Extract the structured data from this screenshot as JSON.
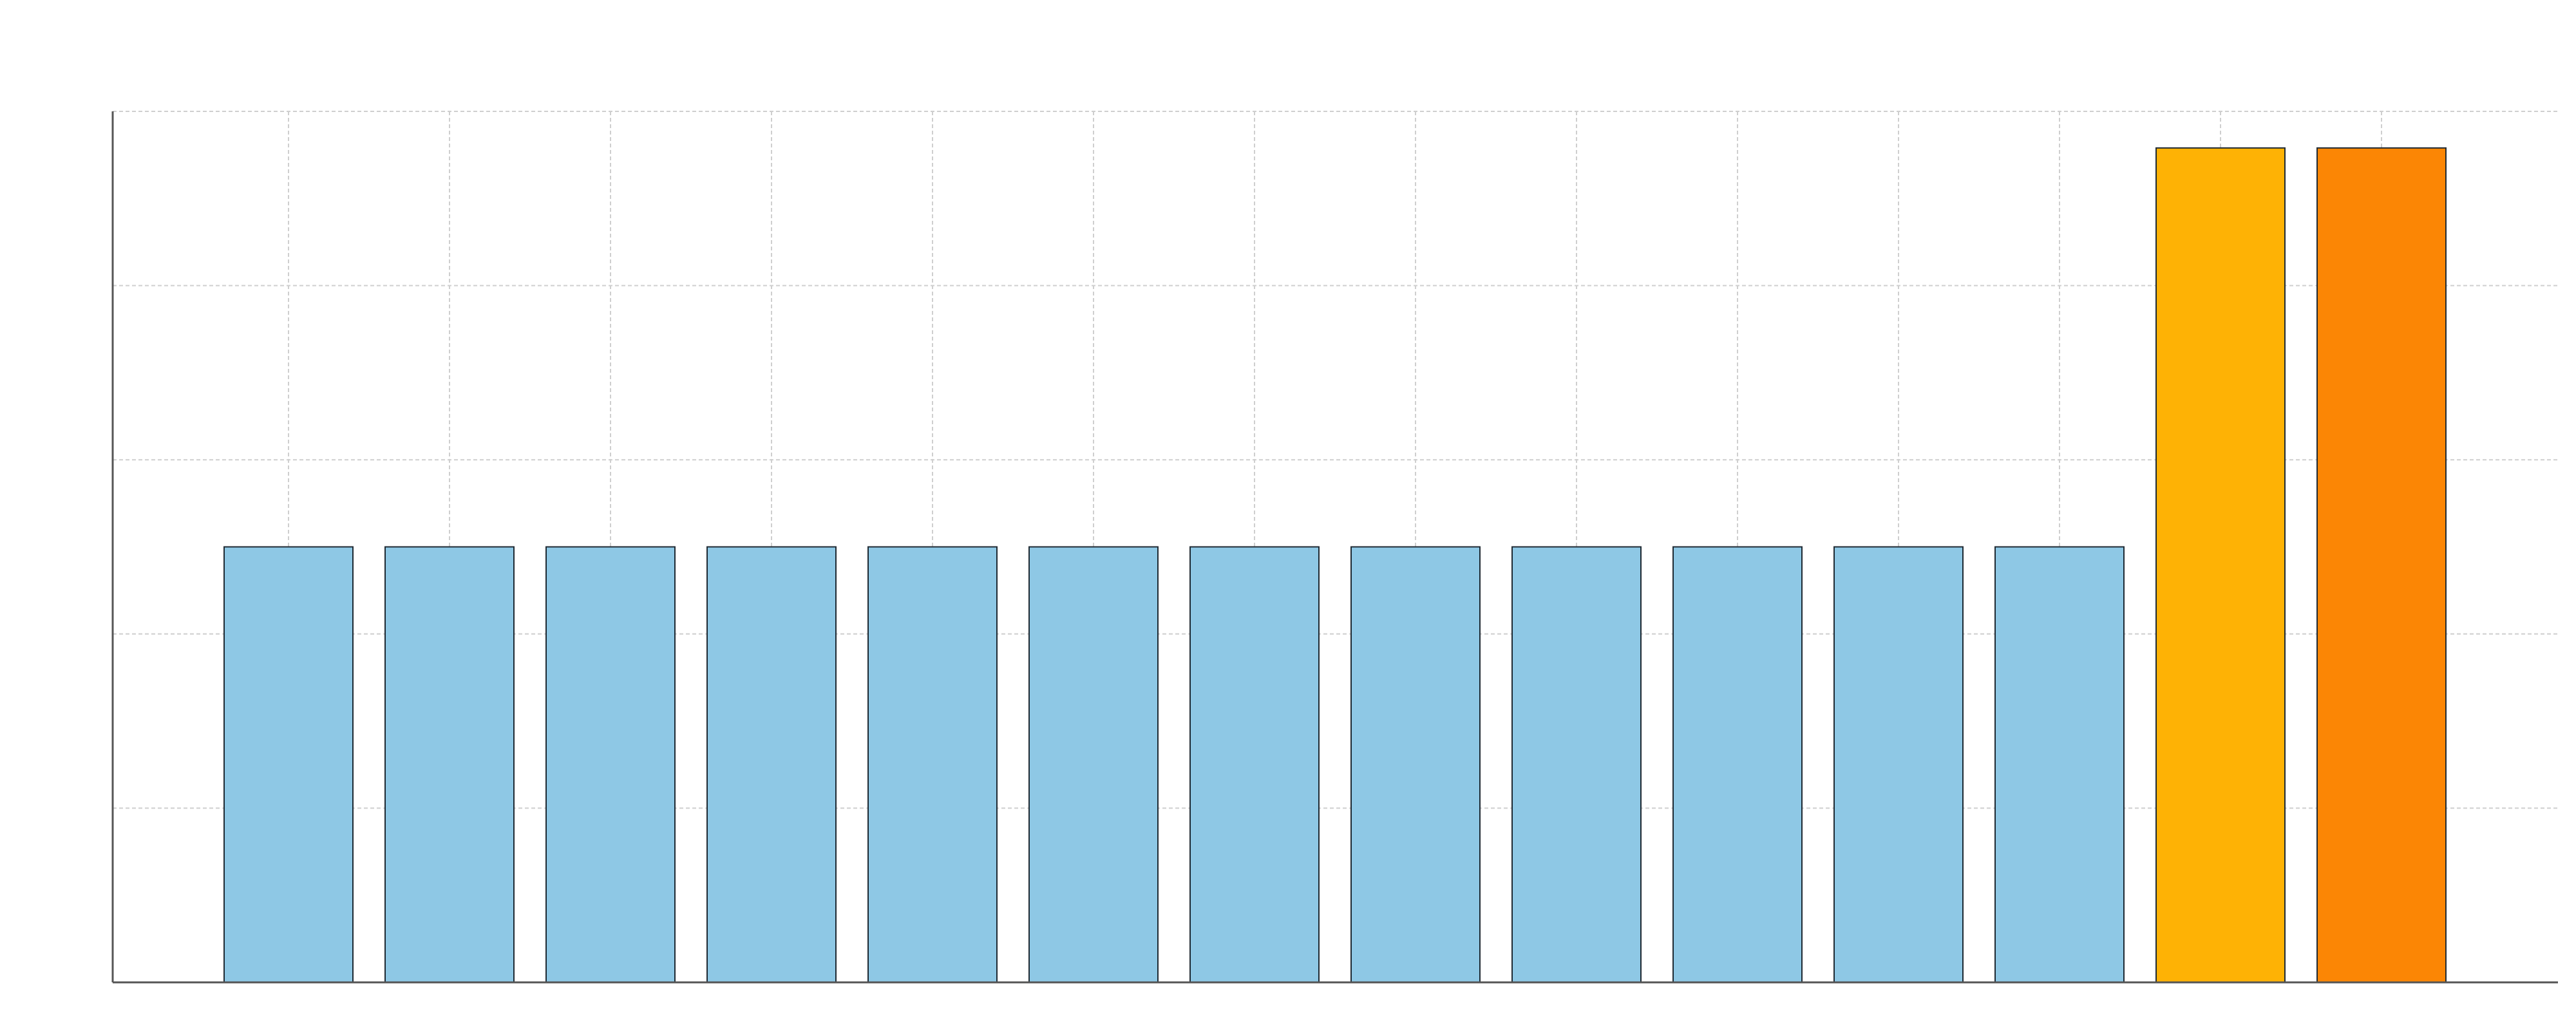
{
  "chart_data": {
    "type": "bar",
    "categories": [
      "",
      "",
      "",
      "",
      "",
      "",
      "",
      "",
      "",
      "",
      "",
      "",
      "",
      ""
    ],
    "values": [
      2.5,
      2.5,
      2.5,
      2.5,
      2.5,
      2.5,
      2.5,
      2.5,
      2.5,
      2.5,
      2.5,
      2.5,
      4.79,
      4.79
    ],
    "ylim": [
      0,
      5.0
    ],
    "grid": true,
    "legend": "none",
    "colors": {
      "bars": [
        "#8ec8e5",
        "#8ec8e5",
        "#8ec8e5",
        "#8ec8e5",
        "#8ec8e5",
        "#8ec8e5",
        "#8ec8e5",
        "#8ec8e5",
        "#8ec8e5",
        "#8ec8e5",
        "#8ec8e5",
        "#8ec8e5",
        "#feb205",
        "#fb8605"
      ],
      "bar_edge": "#1f2a33",
      "axis": "#555555",
      "grid": "#cfcfcf"
    }
  }
}
